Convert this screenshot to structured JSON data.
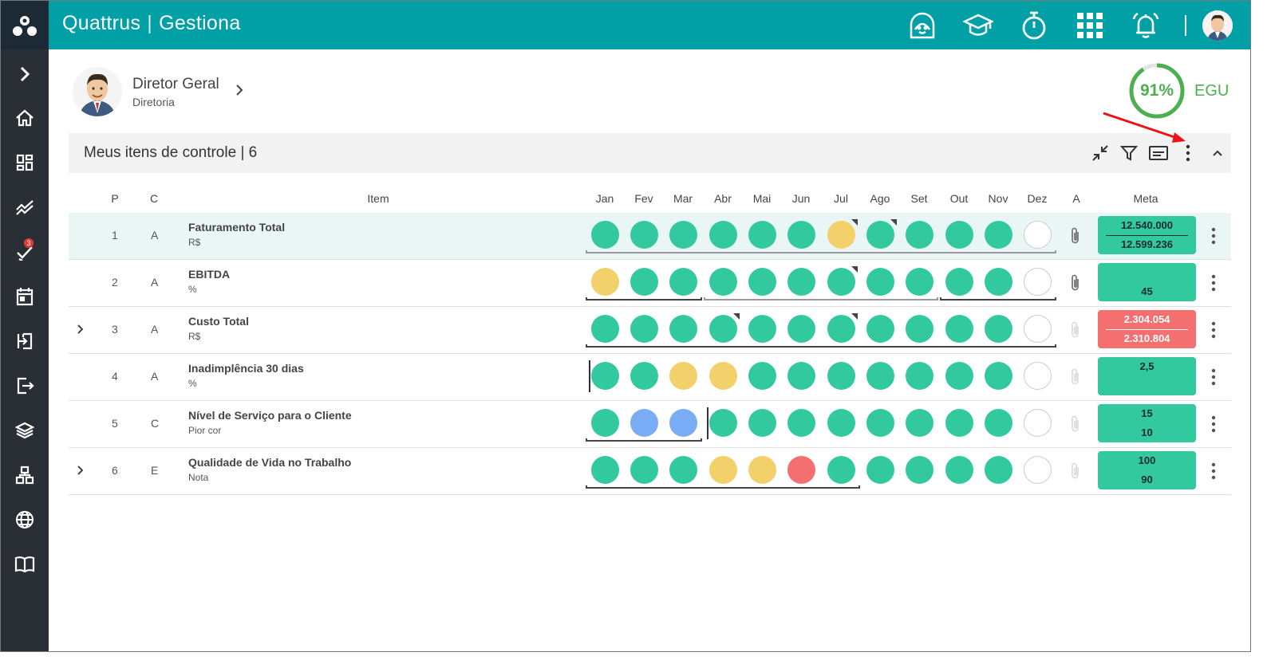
{
  "app": {
    "brand": "Quattrus",
    "module": "Gestiona"
  },
  "top_icons": [
    "support-icon",
    "graduation-cap-icon",
    "stopwatch-icon",
    "apps-grid-icon",
    "bell-icon"
  ],
  "profile": {
    "name": "Diretor Geral",
    "dept": "Diretoria"
  },
  "egu": {
    "value": "91%",
    "percent": 91,
    "label": "EGU",
    "color": "#4caf50"
  },
  "sidebar": {
    "badge": "3"
  },
  "section": {
    "title": "Meus itens de controle | 6"
  },
  "columns": {
    "p": "P",
    "c": "C",
    "item": "Item",
    "months": [
      "Jan",
      "Fev",
      "Mar",
      "Abr",
      "Mai",
      "Jun",
      "Jul",
      "Ago",
      "Set",
      "Out",
      "Nov",
      "Dez"
    ],
    "a": "A",
    "meta": "Meta"
  },
  "rows": [
    {
      "p": "1",
      "c": "A",
      "name": "Faturamento Total",
      "unit": "R$",
      "expandable": false,
      "selected": true,
      "months": [
        "g",
        "g",
        "g",
        "g",
        "g",
        "g",
        "y",
        "g",
        "g",
        "g",
        "g",
        "e"
      ],
      "corners": [
        6,
        7
      ],
      "attach": true,
      "meta_top": "12.540.000",
      "meta_bot": "12.599.236",
      "meta_color": "green"
    },
    {
      "p": "2",
      "c": "A",
      "name": "EBITDA",
      "unit": "%",
      "expandable": false,
      "months": [
        "y",
        "g",
        "g",
        "g",
        "g",
        "g",
        "g",
        "g",
        "g",
        "g",
        "g",
        "e"
      ],
      "corners": [
        6
      ],
      "attach": true,
      "meta_top": "",
      "meta_bot": "45",
      "meta_color": "green"
    },
    {
      "p": "3",
      "c": "A",
      "name": "Custo Total",
      "unit": "R$",
      "expandable": true,
      "months": [
        "g",
        "g",
        "g",
        "g",
        "g",
        "g",
        "g",
        "g",
        "g",
        "g",
        "g",
        "e"
      ],
      "corners": [
        3,
        6
      ],
      "attach": false,
      "meta_top": "2.304.054",
      "meta_bot": "2.310.804",
      "meta_color": "red"
    },
    {
      "p": "4",
      "c": "A",
      "name": "Inadimplência 30 dias",
      "unit": "%",
      "expandable": false,
      "months": [
        "g",
        "g",
        "y",
        "y",
        "g",
        "g",
        "g",
        "g",
        "g",
        "g",
        "g",
        "e"
      ],
      "corners": [],
      "attach": false,
      "meta_top": "2,5",
      "meta_bot": "",
      "meta_color": "green"
    },
    {
      "p": "5",
      "c": "C",
      "name": "Nível de Serviço para o Cliente",
      "unit": "Pior cor",
      "expandable": false,
      "months": [
        "g",
        "b",
        "b",
        "g",
        "g",
        "g",
        "g",
        "g",
        "g",
        "g",
        "g",
        "e"
      ],
      "corners": [],
      "attach": false,
      "meta_top": "15",
      "meta_bot": "10",
      "meta_color": "green"
    },
    {
      "p": "6",
      "c": "E",
      "name": "Qualidade de Vida no Trabalho",
      "unit": "Nota",
      "expandable": true,
      "months": [
        "g",
        "g",
        "g",
        "y",
        "y",
        "r",
        "g",
        "g",
        "g",
        "g",
        "g",
        "e"
      ],
      "corners": [],
      "attach": false,
      "meta_top": "100",
      "meta_bot": "90",
      "meta_color": "green"
    }
  ],
  "colors": {
    "green": "#33c99f",
    "yellow": "#f2d16b",
    "blue": "#7aacf6",
    "red": "#f46f6f",
    "teal": "#00a0a6"
  }
}
